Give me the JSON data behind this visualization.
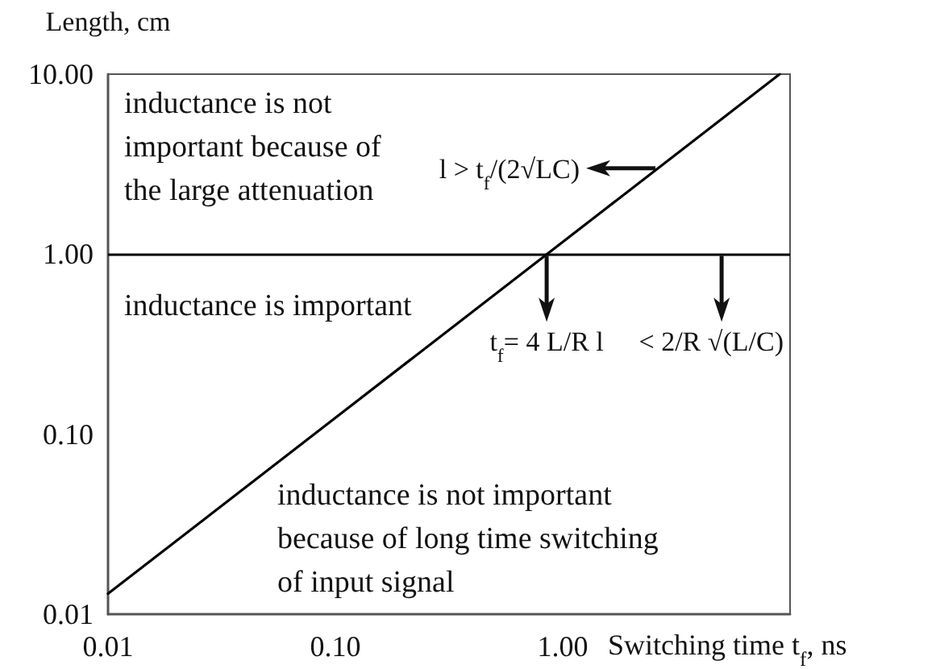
{
  "chart_data": {
    "type": "line",
    "xlabel": "Switching time t$_{f}$, ns",
    "ylabel": "Length, cm",
    "log": "xy",
    "marker": "none",
    "xlim": [
      0.01,
      10
    ],
    "ylim": [
      0.01,
      10
    ],
    "xticks": [
      {
        "value": 0.01,
        "label": "0.01"
      },
      {
        "value": 0.1,
        "label": "0.10"
      },
      {
        "value": 1,
        "label": "1.00"
      }
    ],
    "yticks": [
      {
        "value": 0.01,
        "label": "0.01"
      },
      {
        "value": 0.1,
        "label": "0.10"
      },
      {
        "value": 1,
        "label": "1.00"
      },
      {
        "value": 10,
        "label": "10.00"
      }
    ],
    "x": [
      0.01,
      9
    ],
    "series": [
      {
        "color": "#000000",
        "values": [
          0.013,
          10
        ]
      }
    ],
    "ref_lines": [
      {
        "axis": "y",
        "value": 1,
        "color": "#000000"
      }
    ],
    "annotations": [
      "inductance is not\nimportant because of\nthe large attenuation",
      "inductance is important",
      "inductance is not important\nbecause of long time switching\nof input signal",
      {
        "text": "l > t$_{f}$/(2√LC)",
        "x": 2.6,
        "y": 3
      },
      {
        "text": "t$_{f}$= 4 L/R l",
        "x": 0.85,
        "y": 1
      },
      {
        "text": "< 2/R √(L/C)",
        "x": 5,
        "y": 1
      }
    ]
  }
}
